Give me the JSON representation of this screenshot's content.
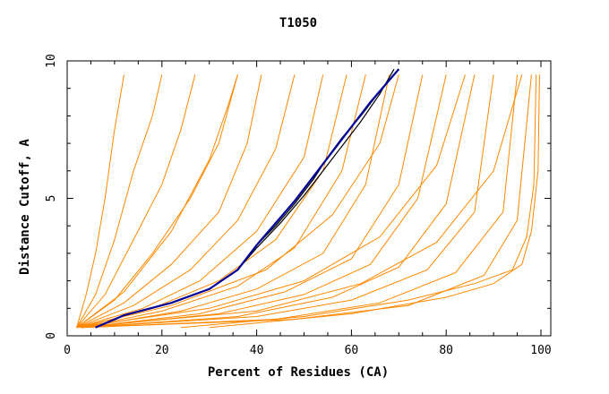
{
  "chart_data": {
    "type": "line",
    "title": "T1050",
    "xlabel": "Percent of Residues (CA)",
    "ylabel": "Distance Cutoff, A",
    "xlim": [
      0,
      100
    ],
    "ylim": [
      0,
      10
    ],
    "x_ticks": [
      "0",
      "20",
      "40",
      "60",
      "80",
      "100"
    ],
    "y_ticks": [
      "0",
      "5",
      "10"
    ],
    "grid": false,
    "legend": "none",
    "colors": {
      "models": "#ff8800",
      "best": "#000099",
      "reference": "#000000",
      "axis": "#000000"
    },
    "series": [
      {
        "values": [
          [
            2,
            0.3
          ],
          [
            4,
            1.5
          ],
          [
            6,
            3
          ],
          [
            8,
            5
          ],
          [
            10,
            7.5
          ],
          [
            12,
            9.5
          ]
        ]
      },
      {
        "values": [
          [
            2,
            0.3
          ],
          [
            6,
            1.5
          ],
          [
            10,
            3.5
          ],
          [
            14,
            6
          ],
          [
            18,
            8
          ],
          [
            20,
            9.5
          ]
        ]
      },
      {
        "values": [
          [
            2,
            0.3
          ],
          [
            8,
            1.5
          ],
          [
            14,
            3.5
          ],
          [
            20,
            5.5
          ],
          [
            24,
            7.5
          ],
          [
            27,
            9.5
          ]
        ]
      },
      {
        "values": [
          [
            2,
            0.3
          ],
          [
            10,
            1.3
          ],
          [
            18,
            3
          ],
          [
            26,
            5
          ],
          [
            32,
            7
          ],
          [
            36,
            9.5
          ]
        ]
      },
      {
        "values": [
          [
            2,
            0.3
          ],
          [
            12,
            1.2
          ],
          [
            22,
            2.6
          ],
          [
            32,
            4.5
          ],
          [
            38,
            7
          ],
          [
            41,
            9.5
          ]
        ]
      },
      {
        "values": [
          [
            2,
            0.3
          ],
          [
            14,
            1.1
          ],
          [
            26,
            2.4
          ],
          [
            36,
            4.2
          ],
          [
            44,
            6.8
          ],
          [
            48,
            9.5
          ]
        ]
      },
      {
        "values": [
          [
            2,
            0.3
          ],
          [
            16,
            1
          ],
          [
            28,
            2
          ],
          [
            40,
            3.8
          ],
          [
            50,
            6.5
          ],
          [
            54,
            9.5
          ]
        ]
      },
      {
        "values": [
          [
            3,
            0.3
          ],
          [
            18,
            1
          ],
          [
            32,
            2
          ],
          [
            44,
            3.5
          ],
          [
            54,
            6
          ],
          [
            59,
            9.5
          ]
        ]
      },
      {
        "values": [
          [
            3,
            0.3
          ],
          [
            20,
            0.9
          ],
          [
            36,
            1.8
          ],
          [
            48,
            3.2
          ],
          [
            58,
            6
          ],
          [
            63,
            9.5
          ]
        ]
      },
      {
        "values": [
          [
            3,
            0.3
          ],
          [
            24,
            0.9
          ],
          [
            40,
            1.7
          ],
          [
            54,
            3
          ],
          [
            63,
            5.5
          ],
          [
            68,
            9.5
          ]
        ]
      },
      {
        "values": [
          [
            3,
            0.3
          ],
          [
            28,
            0.8
          ],
          [
            46,
            1.6
          ],
          [
            60,
            2.8
          ],
          [
            70,
            5.5
          ],
          [
            75,
            9.5
          ]
        ]
      },
      {
        "values": [
          [
            3,
            0.3
          ],
          [
            32,
            0.8
          ],
          [
            50,
            1.5
          ],
          [
            64,
            2.6
          ],
          [
            74,
            5
          ],
          [
            80,
            9.5
          ]
        ]
      },
      {
        "values": [
          [
            3,
            0.3
          ],
          [
            36,
            0.7
          ],
          [
            56,
            1.4
          ],
          [
            70,
            2.5
          ],
          [
            80,
            4.8
          ],
          [
            86,
            9.5
          ]
        ]
      },
      {
        "values": [
          [
            3,
            0.3
          ],
          [
            40,
            0.7
          ],
          [
            60,
            1.3
          ],
          [
            76,
            2.4
          ],
          [
            86,
            4.5
          ],
          [
            90,
            9.5
          ]
        ]
      },
      {
        "values": [
          [
            3,
            0.3
          ],
          [
            44,
            0.6
          ],
          [
            66,
            1.2
          ],
          [
            82,
            2.3
          ],
          [
            92,
            4.5
          ],
          [
            95,
            9.5
          ]
        ]
      },
      {
        "values": [
          [
            3,
            0.3
          ],
          [
            48,
            0.6
          ],
          [
            72,
            1.1
          ],
          [
            88,
            2.2
          ],
          [
            95,
            4.2
          ],
          [
            98,
            9.5
          ]
        ]
      },
      {
        "values": [
          [
            2,
            0.3
          ],
          [
            30,
            1.0
          ],
          [
            50,
            2.0
          ],
          [
            66,
            3.6
          ],
          [
            78,
            6.2
          ],
          [
            84,
            9.5
          ]
        ]
      },
      {
        "values": [
          [
            2,
            0.3
          ],
          [
            22,
            1.1
          ],
          [
            42,
            2.4
          ],
          [
            56,
            4.4
          ],
          [
            66,
            7.0
          ],
          [
            70,
            9.5
          ]
        ]
      },
      {
        "values": [
          [
            2,
            0.3
          ],
          [
            12,
            1.6
          ],
          [
            22,
            3.8
          ],
          [
            30,
            6.4
          ],
          [
            34,
            8.4
          ],
          [
            36,
            9.5
          ]
        ]
      },
      {
        "values": [
          [
            2,
            0.3
          ],
          [
            40,
            0.9
          ],
          [
            62,
            1.9
          ],
          [
            78,
            3.4
          ],
          [
            90,
            6.0
          ],
          [
            96,
            9.5
          ]
        ]
      },
      {
        "values": [
          [
            24,
            0.3
          ],
          [
            50,
            0.7
          ],
          [
            72,
            1.3
          ],
          [
            86,
            1.9
          ],
          [
            94,
            2.4
          ],
          [
            97,
            3.6
          ],
          [
            98.5,
            5.5
          ],
          [
            99,
            9.5
          ]
        ]
      },
      {
        "values": [
          [
            30,
            0.3
          ],
          [
            60,
            0.8
          ],
          [
            80,
            1.4
          ],
          [
            90,
            1.9
          ],
          [
            96,
            2.6
          ],
          [
            98,
            3.8
          ],
          [
            99.4,
            6
          ],
          [
            99.7,
            9.5
          ]
        ]
      }
    ],
    "best_series": {
      "values": [
        [
          6,
          0.3
        ],
        [
          12,
          0.75
        ],
        [
          22,
          1.2
        ],
        [
          30,
          1.7
        ],
        [
          36,
          2.4
        ],
        [
          40,
          3.3
        ],
        [
          44,
          4.1
        ],
        [
          48,
          4.9
        ],
        [
          52,
          5.8
        ],
        [
          56,
          6.7
        ],
        [
          60,
          7.6
        ],
        [
          64,
          8.5
        ],
        [
          68,
          9.3
        ],
        [
          70,
          9.7
        ]
      ]
    },
    "reference_series": [
      {
        "values": [
          [
            6,
            0.3
          ],
          [
            12,
            0.75
          ],
          [
            22,
            1.2
          ],
          [
            30,
            1.7
          ],
          [
            36,
            2.4
          ],
          [
            40,
            3.3
          ],
          [
            44,
            4.0
          ],
          [
            48,
            4.8
          ],
          [
            52,
            5.7
          ],
          [
            55,
            6.5
          ],
          [
            58,
            7.2
          ],
          [
            62,
            8.0
          ],
          [
            66,
            8.9
          ],
          [
            70,
            9.7
          ]
        ]
      },
      {
        "values": [
          [
            6,
            0.3
          ],
          [
            12,
            0.75
          ],
          [
            22,
            1.2
          ],
          [
            30,
            1.7
          ],
          [
            36,
            2.4
          ],
          [
            40,
            3.2
          ],
          [
            45,
            4.1
          ],
          [
            50,
            5.1
          ],
          [
            54,
            6.0
          ],
          [
            58,
            6.9
          ],
          [
            62,
            7.8
          ],
          [
            66,
            8.8
          ],
          [
            69,
            9.7
          ]
        ]
      }
    ]
  }
}
